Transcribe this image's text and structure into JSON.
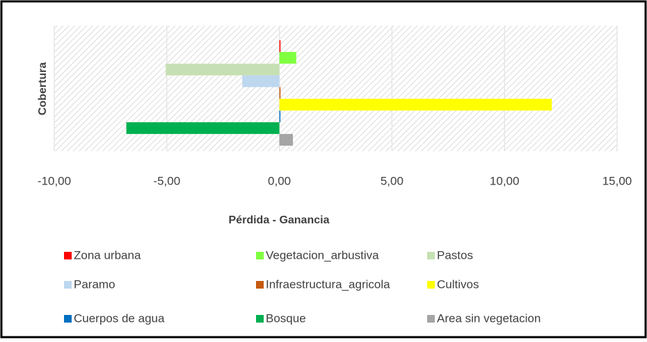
{
  "chart_data": {
    "type": "bar",
    "orientation": "horizontal",
    "x_axis_label": "Pérdida - Ganancia",
    "y_axis_label": "Cobertura",
    "xlim": [
      -10,
      15
    ],
    "xticks": [
      {
        "value": -10,
        "label": "-10,00"
      },
      {
        "value": -5,
        "label": "-5,00"
      },
      {
        "value": 0,
        "label": "0,00"
      },
      {
        "value": 5,
        "label": "5,00"
      },
      {
        "value": 10,
        "label": "10,00"
      },
      {
        "value": 15,
        "label": "15,00"
      }
    ],
    "grid": true,
    "legend": "bottom",
    "series": [
      {
        "name": "Zona urbana",
        "color": "#ff0000",
        "values": [
          0.05
        ]
      },
      {
        "name": "Vegetacion_arbustiva",
        "color": "#80ff40",
        "values": [
          0.75
        ]
      },
      {
        "name": "Pastos",
        "color": "#c6e0b4",
        "values": [
          -5.05
        ]
      },
      {
        "name": "Paramo",
        "color": "#bdd7ee",
        "values": [
          -1.65
        ]
      },
      {
        "name": "Infraestructura_agricola",
        "color": "#c55a11",
        "values": [
          0.05
        ]
      },
      {
        "name": "Cultivos",
        "color": "#ffff00",
        "values": [
          12.1
        ]
      },
      {
        "name": "Cuerpos de agua",
        "color": "#0070c0",
        "values": [
          0.03
        ]
      },
      {
        "name": "Bosque",
        "color": "#00b050",
        "values": [
          -6.8
        ]
      },
      {
        "name": "Area sin vegetacion",
        "color": "#a5a5a5",
        "values": [
          0.6
        ]
      }
    ]
  }
}
